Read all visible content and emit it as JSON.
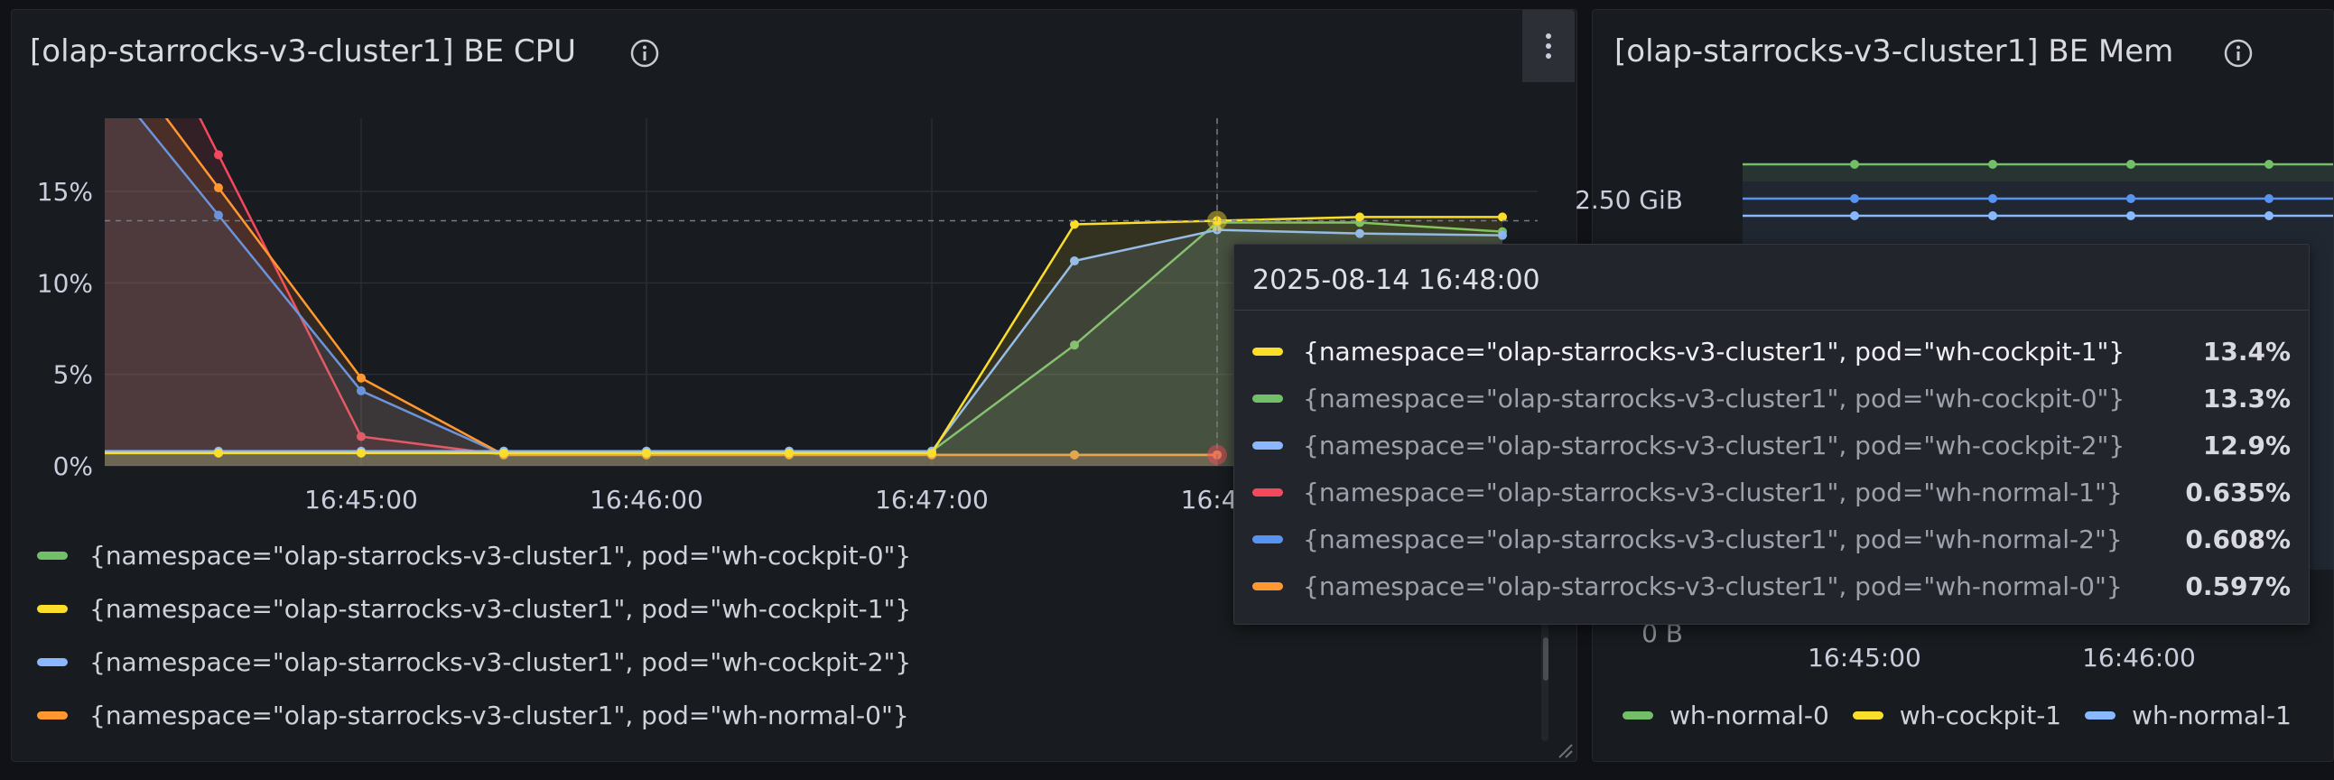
{
  "cpu_panel": {
    "title": "[olap-starrocks-v3-cluster1] BE CPU",
    "legend": [
      {
        "label": "{namespace=\"olap-starrocks-v3-cluster1\", pod=\"wh-cockpit-0\"}",
        "color": "#73bf69"
      },
      {
        "label": "{namespace=\"olap-starrocks-v3-cluster1\", pod=\"wh-cockpit-1\"}",
        "color": "#fade2a"
      },
      {
        "label": "{namespace=\"olap-starrocks-v3-cluster1\", pod=\"wh-cockpit-2\"}",
        "color": "#8ab8ff"
      },
      {
        "label": "{namespace=\"olap-starrocks-v3-cluster1\", pod=\"wh-normal-0\"}",
        "color": "#ff9830"
      }
    ]
  },
  "mem_panel": {
    "title": "[olap-starrocks-v3-cluster1] BE Mem",
    "y_tick": "2.50 GiB",
    "y_tick_partial": "0 B",
    "x_ticks": [
      "16:45:00",
      "16:46:00"
    ],
    "legend": [
      {
        "label": "wh-normal-0",
        "color": "#73bf69"
      },
      {
        "label": "wh-cockpit-1",
        "color": "#fade2a"
      },
      {
        "label": "wh-normal-1",
        "color": "#8ab8ff"
      }
    ]
  },
  "tooltip": {
    "time": "2025-08-14 16:48:00",
    "rows": [
      {
        "label": "{namespace=\"olap-starrocks-v3-cluster1\", pod=\"wh-cockpit-1\"}",
        "value": "13.4%",
        "color": "#fade2a"
      },
      {
        "label": "{namespace=\"olap-starrocks-v3-cluster1\", pod=\"wh-cockpit-0\"}",
        "value": "13.3%",
        "color": "#73bf69"
      },
      {
        "label": "{namespace=\"olap-starrocks-v3-cluster1\", pod=\"wh-cockpit-2\"}",
        "value": "12.9%",
        "color": "#8ab8ff"
      },
      {
        "label": "{namespace=\"olap-starrocks-v3-cluster1\", pod=\"wh-normal-1\"}",
        "value": "0.635%",
        "color": "#f2495c"
      },
      {
        "label": "{namespace=\"olap-starrocks-v3-cluster1\", pod=\"wh-normal-2\"}",
        "value": "0.608%",
        "color": "#5794f2"
      },
      {
        "label": "{namespace=\"olap-starrocks-v3-cluster1\", pod=\"wh-normal-0\"}",
        "value": "0.597%",
        "color": "#ff9830"
      }
    ]
  },
  "chart_data": [
    {
      "type": "line",
      "title": "[olap-starrocks-v3-cluster1] BE CPU",
      "x": [
        "16:44:30",
        "16:45:00",
        "16:45:30",
        "16:46:00",
        "16:46:30",
        "16:47:00",
        "16:47:30",
        "16:48:00",
        "16:48:30",
        "16:49:00"
      ],
      "x_ticks": [
        "16:45:00",
        "16:46:00",
        "16:47:00",
        "16:48"
      ],
      "y_ticks": [
        "0%",
        "5%",
        "10%",
        "15%"
      ],
      "ylim": [
        0,
        19
      ],
      "series": [
        {
          "name": "wh-cockpit-0",
          "color": "#73bf69",
          "values": [
            0.7,
            0.7,
            0.8,
            0.8,
            0.8,
            0.8,
            6.6,
            13.3,
            13.3,
            12.8
          ]
        },
        {
          "name": "wh-cockpit-1",
          "color": "#fade2a",
          "values": [
            0.7,
            0.7,
            0.7,
            0.7,
            0.7,
            0.7,
            13.2,
            13.4,
            13.6,
            13.6
          ]
        },
        {
          "name": "wh-cockpit-2",
          "color": "#8ab8ff",
          "values": [
            0.8,
            0.8,
            0.8,
            0.8,
            0.8,
            0.8,
            11.2,
            12.9,
            12.7,
            12.6
          ]
        },
        {
          "name": "wh-normal-1",
          "color": "#f2495c",
          "values": [
            17.0,
            1.6,
            0.6,
            0.6,
            0.6,
            0.6,
            0.6,
            0.6,
            null,
            null
          ]
        },
        {
          "name": "wh-normal-2",
          "color": "#5794f2",
          "values": [
            13.7,
            4.1,
            0.6,
            0.6,
            0.6,
            0.6,
            0.6,
            0.6,
            null,
            null
          ]
        },
        {
          "name": "wh-normal-0",
          "color": "#ff9830",
          "values": [
            15.2,
            4.8,
            0.6,
            0.6,
            0.6,
            0.6,
            0.6,
            0.6,
            null,
            null
          ]
        }
      ]
    }
  ]
}
